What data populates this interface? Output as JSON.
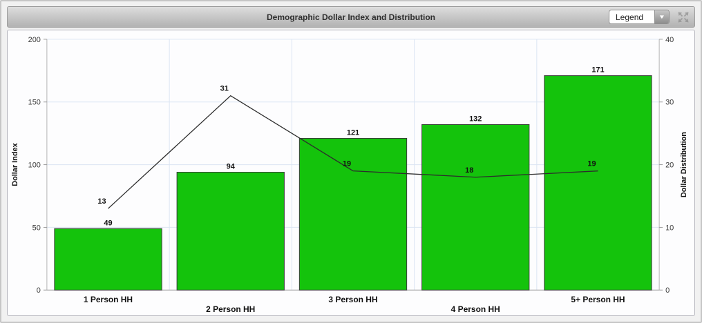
{
  "header": {
    "title": "Demographic Dollar Index and Distribution",
    "legend_button": "Legend"
  },
  "chart_data": {
    "type": "bar",
    "subtype": "bar-with-line-overlay",
    "title": "Demographic Dollar Index and Distribution",
    "categories": [
      "1 Person HH",
      "2 Person HH",
      "3 Person HH",
      "4 Person HH",
      "5+ Person HH"
    ],
    "series": [
      {
        "name": "Dollar Index",
        "type": "bar",
        "axis": "left",
        "color": "#14c30c",
        "values": [
          49,
          94,
          121,
          132,
          171
        ]
      },
      {
        "name": "Dollar Distribution",
        "type": "line",
        "axis": "right",
        "color": "#2d2d2d",
        "values": [
          13,
          31,
          19,
          18,
          19
        ]
      }
    ],
    "left_axis": {
      "label": "Dollar Index",
      "min": 0,
      "max": 200,
      "ticks": [
        0,
        50,
        100,
        150,
        200
      ]
    },
    "right_axis": {
      "label": "Dollar Distribution",
      "min": 0,
      "max": 40,
      "ticks": [
        0,
        10,
        20,
        30,
        40
      ]
    },
    "grid": true,
    "data_labels": true,
    "legend_position": "collapsed-dropdown",
    "colors": {
      "bar_fill": "#14c30c",
      "bar_border": "#3b3b3b",
      "line": "#2d2d2d",
      "grid": "#dbe5f3",
      "plot_bg": "#fdfdfe"
    }
  }
}
